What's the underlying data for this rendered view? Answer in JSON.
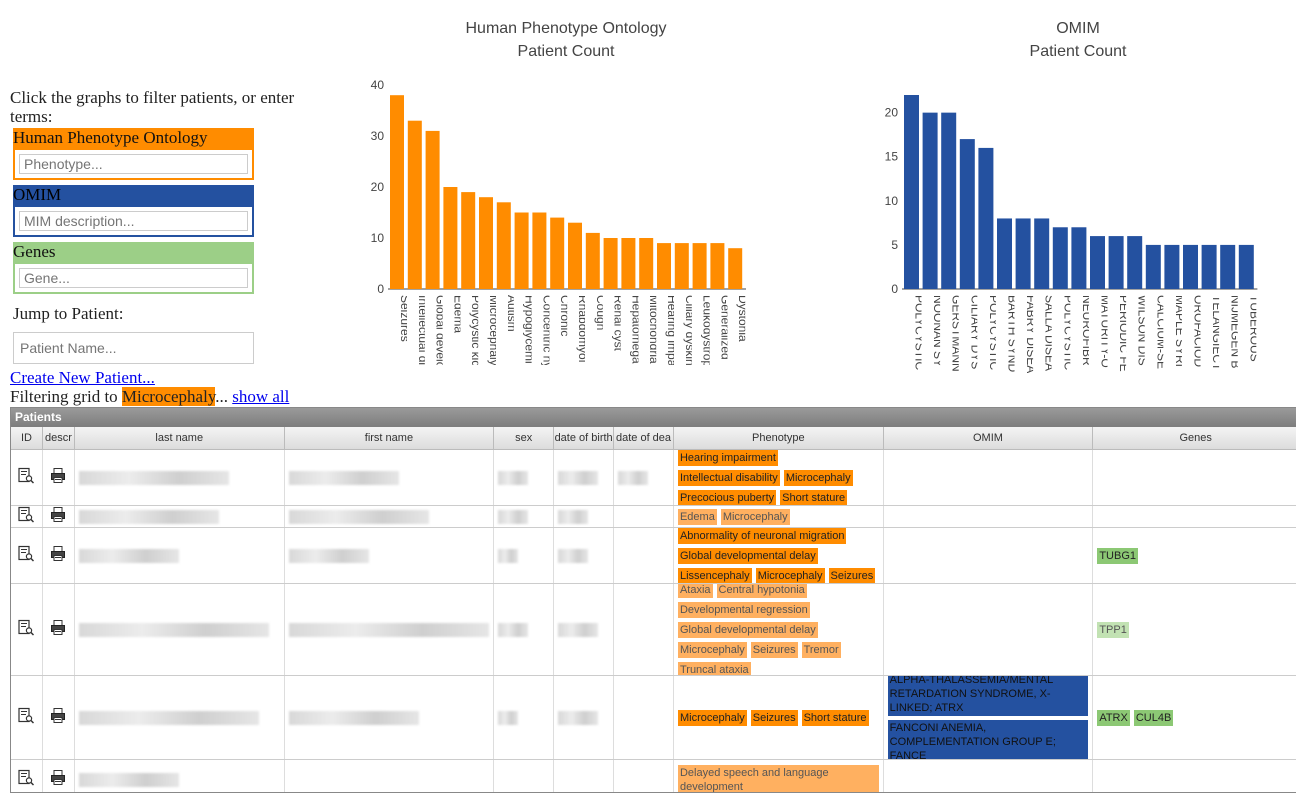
{
  "filters": {
    "instructions": "Click the graphs to filter patients, or enter terms:",
    "hpo_label": "Human Phenotype Ontology",
    "hpo_placeholder": "Phenotype...",
    "omim_label": "OMIM",
    "omim_placeholder": "MIM description...",
    "genes_label": "Genes",
    "genes_placeholder": "Gene...",
    "jump_label": "Jump to Patient:",
    "jump_placeholder": "Patient Name...",
    "create_link": "Create New Patient...",
    "filtering_prefix": "Filtering grid to ",
    "filtering_term": "Microcephaly",
    "filtering_suffix": "... ",
    "show_all_link": "show all"
  },
  "colors": {
    "hpo": "#ff8c00",
    "omim": "#2451a0",
    "genes": "#9ccf87"
  },
  "chart_data": [
    {
      "type": "bar",
      "title": "Human Phenotype Ontology",
      "subtitle": "Patient Count",
      "categories": [
        "Seizures",
        "Intellectual di",
        "Global develo",
        "Edema",
        "Polycystic kid",
        "Microcephaly",
        "Autism",
        "Hypoglycemi",
        "Concentric hy",
        "Chronic",
        "Rhabdomyol",
        "Cough",
        "Renal cyst",
        "Hepatomega",
        "Mitochondria",
        "Hearing impa",
        "Ciliary dyskin",
        "Leukodystrop",
        "Generalized",
        "Dystonia"
      ],
      "values": [
        38,
        33,
        31,
        20,
        19,
        18,
        17,
        15,
        15,
        14,
        13,
        11,
        10,
        10,
        10,
        9,
        9,
        9,
        9,
        8
      ],
      "ylim": [
        0,
        40
      ],
      "yticks": [
        0,
        10,
        20,
        30,
        40
      ],
      "color": "#ff8c00"
    },
    {
      "type": "bar",
      "title": "OMIM",
      "subtitle": "Patient Count",
      "categories": [
        "POLYCYSTIC",
        "NOONAN SY",
        "GERSTMANN",
        "CILIARY DYS",
        "POLYCYSTIC",
        "BARTH SYND",
        "FABRY DISEA",
        "SALLA DISEA",
        "POLYCYSTIC",
        "NEUROFIBR",
        "MATURITY-O",
        "PERIODIC FE",
        "WILSON DIS",
        "CALCIUM-SE",
        "MAPLE SYRI",
        "OROFACIOD",
        "TELANGIECT",
        "NIJMEGEN B",
        "TUBEROUS"
      ],
      "values": [
        22,
        20,
        20,
        17,
        16,
        8,
        8,
        8,
        7,
        7,
        6,
        6,
        6,
        5,
        5,
        5,
        5,
        5,
        5
      ],
      "ylim": [
        0,
        22
      ],
      "yticks": [
        0,
        5,
        10,
        15,
        20
      ],
      "color": "#2451a0"
    }
  ],
  "grid": {
    "title": "Patients",
    "columns": [
      "ID",
      "descr",
      "last name",
      "first name",
      "sex",
      "date of birth",
      "date of dea",
      "Phenotype",
      "OMIM",
      "Genes"
    ],
    "rows": [
      {
        "phenotype": [
          [
            "Hearing impairment",
            "s"
          ],
          [
            "Intellectual disability",
            "s"
          ],
          [
            "Microcephaly",
            "s"
          ],
          [
            "Precocious puberty",
            "s"
          ],
          [
            "Short stature",
            "s"
          ]
        ],
        "omim": [],
        "genes": []
      },
      {
        "phenotype": [
          [
            "Edema",
            "w"
          ],
          [
            "Microcephaly",
            "w"
          ]
        ],
        "omim": [],
        "genes": []
      },
      {
        "phenotype": [
          [
            "Abnormality of neuronal migration",
            "s"
          ],
          [
            "Global developmental delay",
            "s"
          ],
          [
            "Lissencephaly",
            "s"
          ],
          [
            "Microcephaly",
            "s"
          ],
          [
            "Seizures",
            "s"
          ]
        ],
        "omim": [],
        "genes": [
          [
            "TUBG1",
            "s"
          ]
        ]
      },
      {
        "phenotype": [
          [
            "Ataxia",
            "w"
          ],
          [
            "Central hypotonia",
            "w"
          ],
          [
            "Developmental regression",
            "w"
          ],
          [
            "Global developmental delay",
            "w"
          ],
          [
            "Microcephaly",
            "w"
          ],
          [
            "Seizures",
            "w"
          ],
          [
            "Tremor",
            "w"
          ],
          [
            "Truncal ataxia",
            "w"
          ]
        ],
        "omim": [],
        "genes": [
          [
            "TPP1",
            "w"
          ]
        ]
      },
      {
        "phenotype": [
          [
            "Microcephaly",
            "s"
          ],
          [
            "Seizures",
            "s"
          ],
          [
            "Short stature",
            "s"
          ]
        ],
        "omim": [
          "ALPHA-THALASSEMIA/MENTAL RETARDATION SYNDROME, X-LINKED; ATRX",
          "FANCONI ANEMIA, COMPLEMENTATION GROUP E; FANCE"
        ],
        "genes": [
          [
            "ATRX",
            "s"
          ],
          [
            "CUL4B",
            "s"
          ]
        ]
      },
      {
        "phenotype": [
          [
            "Delayed speech and language development",
            "w"
          ]
        ],
        "omim": [],
        "genes": []
      }
    ]
  }
}
